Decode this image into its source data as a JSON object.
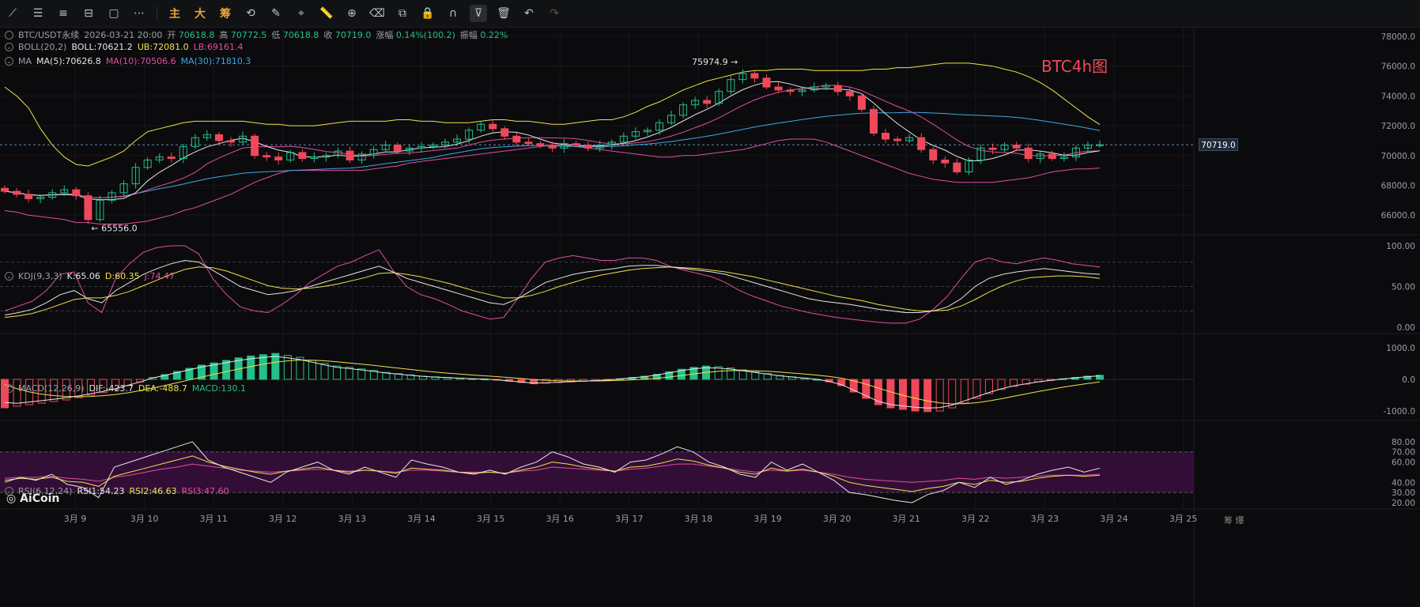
{
  "toolbar": {
    "items": [
      {
        "name": "trendline-tool-icon",
        "glyph": "⟋"
      },
      {
        "name": "horizontal-lines-icon",
        "glyph": "☰"
      },
      {
        "name": "channel-tool-icon",
        "glyph": "≡"
      },
      {
        "name": "fib-tool-icon",
        "glyph": "⊟"
      },
      {
        "name": "rectangle-tool-icon",
        "glyph": "▢"
      },
      {
        "name": "more-tools-icon",
        "glyph": "⋯"
      }
    ],
    "text_buttons": [
      "主",
      "大",
      "筹"
    ],
    "items2": [
      {
        "name": "rotate-tool-icon",
        "glyph": "⟲"
      },
      {
        "name": "brush-tool-icon",
        "glyph": "✎"
      },
      {
        "name": "select-tool-icon",
        "glyph": "⌖"
      },
      {
        "name": "ruler-tool-icon",
        "glyph": "📏"
      },
      {
        "name": "zoom-tool-icon",
        "glyph": "⊕"
      },
      {
        "name": "eraser-tool-icon",
        "glyph": "⌫"
      },
      {
        "name": "compare-tool-icon",
        "glyph": "⧉"
      },
      {
        "name": "lock-tool-icon",
        "glyph": "🔒"
      },
      {
        "name": "magnet-tool-icon",
        "glyph": "∩"
      },
      {
        "name": "filter-tool-icon",
        "glyph": "⊽"
      },
      {
        "name": "delete-tool-icon",
        "glyph": "🗑"
      },
      {
        "name": "undo-icon",
        "glyph": "↶"
      },
      {
        "name": "redo-icon",
        "glyph": "↷"
      }
    ]
  },
  "header": {
    "symbol": "BTC/USDT永续",
    "time": "2026-03-21 20:00",
    "open_label": "开",
    "open": "70618.8",
    "high_label": "高",
    "high": "70772.5",
    "low_label": "低",
    "low": "70618.8",
    "close_label": "收",
    "close": "70719.0",
    "change_label": "涨幅",
    "change": "0.14%(100.2)",
    "amp_label": "振幅",
    "amp": "0.22%"
  },
  "boll": {
    "name": "BOLL(20,2)",
    "mid": "BOLL:70621.2",
    "ub": "UB:72081.0",
    "lb": "LB:69161.4"
  },
  "ma": {
    "name": "MA",
    "ma5": "MA(5):70626.8",
    "ma10": "MA(10):70506.6",
    "ma30": "MA(30):71810.3"
  },
  "kdj": {
    "name": "KDJ(9,3,3)",
    "k": "K:65.06",
    "d": "D:60.35",
    "j": "J:74.47"
  },
  "macd": {
    "name": "MACD(12,26,9)",
    "dif": "DIF:-423.7",
    "dea": "DEA:-488.7",
    "macd": "MACD:130.1"
  },
  "rsi": {
    "name": "RSI(6,12,24)",
    "rsi1": "RSI1:54.23",
    "rsi2": "RSI2:46.63",
    "rsi3": "RSI3:47.60"
  },
  "watermark": "BTC4h图",
  "logo": "AiCoin",
  "corner": "筹 爆",
  "colors": {
    "up": "#22c08a",
    "down": "#f0485b",
    "ma5": "#e6e6e6",
    "ma10": "#e04ea0",
    "ma30": "#3da8e6",
    "boll": "#f0e14a",
    "rsi_band": "#3a0f40"
  },
  "chart_data": {
    "type": "candlestick",
    "last_price": "70719.0",
    "price_axis": {
      "ticks": [
        "78000.0",
        "76000.0",
        "74000.0",
        "72000.0",
        "70000.0",
        "68000.0",
        "66000.0"
      ],
      "range": [
        65000,
        78000
      ]
    },
    "annotations": {
      "high": "75974.9",
      "low": "65556.0"
    },
    "x_labels": [
      "3月 9",
      "3月 10",
      "3月 11",
      "3月 12",
      "3月 13",
      "3月 14",
      "3月 15",
      "3月 16",
      "3月 17",
      "3月 18",
      "3月 19",
      "3月 20",
      "3月 21",
      "3月 22",
      "3月 23",
      "3月 24",
      "3月 25"
    ],
    "close": [
      67600,
      67400,
      67100,
      67200,
      67500,
      67700,
      67300,
      65700,
      67000,
      67500,
      68100,
      69200,
      69700,
      69900,
      69800,
      70600,
      71200,
      71400,
      71000,
      70900,
      71300,
      70000,
      69900,
      69700,
      70200,
      69800,
      69900,
      70000,
      70300,
      69700,
      70100,
      70400,
      70700,
      70300,
      70500,
      70600,
      70700,
      70900,
      71100,
      71700,
      72100,
      71800,
      71300,
      70900,
      70800,
      70700,
      70500,
      70800,
      70700,
      70500,
      70700,
      70900,
      71300,
      71600,
      71700,
      72200,
      72700,
      73400,
      73700,
      73500,
      74300,
      75100,
      75500,
      75200,
      74600,
      74400,
      74300,
      74400,
      74600,
      74700,
      74300,
      74000,
      73100,
      71500,
      71100,
      71000,
      71200,
      70400,
      69700,
      69500,
      68900,
      69700,
      70500,
      70400,
      70700,
      70500,
      69800,
      70100,
      69800,
      69900,
      70500,
      70700,
      70719
    ],
    "boll_upper": [
      74600,
      74000,
      73200,
      71800,
      70700,
      69900,
      69400,
      69300,
      69600,
      69900,
      70300,
      71000,
      71600,
      71800,
      72000,
      72200,
      72300,
      72300,
      72300,
      72300,
      72300,
      72200,
      72100,
      72100,
      72000,
      72000,
      72000,
      72100,
      72200,
      72300,
      72300,
      72300,
      72300,
      72400,
      72400,
      72300,
      72300,
      72200,
      72200,
      72200,
      72300,
      72400,
      72400,
      72300,
      72300,
      72200,
      72100,
      72100,
      72200,
      72300,
      72400,
      72400,
      72600,
      72900,
      73300,
      73600,
      74000,
      74400,
      74700,
      75000,
      75200,
      75400,
      75600,
      75700,
      75700,
      75800,
      75800,
      75800,
      75700,
      75700,
      75700,
      75700,
      75700,
      75800,
      75800,
      75900,
      75900,
      76000,
      76100,
      76200,
      76200,
      76200,
      76100,
      76000,
      75800,
      75600,
      75300,
      74900,
      74400,
      73800,
      73200,
      72600,
      72081
    ],
    "boll_lower": [
      66300,
      66200,
      66000,
      65900,
      65800,
      65700,
      65500,
      65500,
      65400,
      65400,
      65400,
      65500,
      65600,
      65800,
      66000,
      66300,
      66500,
      66800,
      67100,
      67400,
      67800,
      68200,
      68500,
      68800,
      69000,
      69000,
      69000,
      69000,
      69000,
      69000,
      69000,
      69100,
      69200,
      69300,
      69500,
      69600,
      69700,
      69800,
      69900,
      70000,
      70100,
      70200,
      70300,
      70400,
      70500,
      70600,
      70700,
      70700,
      70600,
      70500,
      70400,
      70300,
      70200,
      70100,
      70000,
      69900,
      69900,
      70000,
      70000,
      70100,
      70200,
      70300,
      70400,
      70600,
      70800,
      71000,
      71100,
      71100,
      71100,
      70900,
      70600,
      70300,
      70000,
      69700,
      69400,
      69100,
      68800,
      68600,
      68400,
      68300,
      68200,
      68200,
      68200,
      68200,
      68300,
      68400,
      68500,
      68700,
      68900,
      69000,
      69100,
      69100,
      69161
    ],
    "kdj_k": [
      15,
      18,
      22,
      30,
      40,
      45,
      35,
      30,
      45,
      55,
      65,
      72,
      78,
      82,
      80,
      70,
      60,
      50,
      45,
      40,
      42,
      45,
      50,
      55,
      60,
      65,
      70,
      75,
      68,
      60,
      55,
      50,
      45,
      40,
      35,
      30,
      28,
      35,
      45,
      55,
      60,
      65,
      68,
      70,
      72,
      75,
      76,
      76,
      74,
      72,
      70,
      68,
      65,
      60,
      55,
      50,
      45,
      40,
      35,
      32,
      30,
      28,
      25,
      22,
      20,
      18,
      18,
      20,
      25,
      35,
      50,
      60,
      65,
      68,
      70,
      72,
      70,
      68,
      66,
      65
    ],
    "kdj_d": [
      12,
      14,
      17,
      22,
      28,
      34,
      36,
      36,
      39,
      44,
      51,
      58,
      65,
      71,
      74,
      73,
      69,
      63,
      57,
      51,
      48,
      47,
      48,
      50,
      53,
      57,
      61,
      66,
      67,
      65,
      62,
      58,
      54,
      49,
      44,
      40,
      36,
      36,
      39,
      44,
      50,
      55,
      60,
      64,
      67,
      70,
      72,
      73,
      74,
      73,
      72,
      70,
      68,
      65,
      62,
      58,
      54,
      50,
      46,
      42,
      38,
      35,
      32,
      28,
      25,
      22,
      20,
      20,
      21,
      26,
      34,
      43,
      51,
      57,
      61,
      62,
      63,
      63,
      62,
      60
    ],
    "kdj_j": [
      20,
      26,
      32,
      45,
      65,
      68,
      30,
      18,
      60,
      78,
      92,
      98,
      100,
      100,
      90,
      60,
      40,
      25,
      20,
      18,
      28,
      40,
      55,
      65,
      75,
      80,
      88,
      95,
      70,
      50,
      40,
      35,
      28,
      20,
      15,
      10,
      12,
      35,
      60,
      80,
      85,
      88,
      85,
      82,
      82,
      85,
      85,
      82,
      75,
      70,
      66,
      62,
      55,
      45,
      38,
      32,
      26,
      22,
      18,
      15,
      12,
      10,
      8,
      6,
      5,
      5,
      10,
      22,
      38,
      60,
      80,
      85,
      80,
      78,
      82,
      85,
      82,
      78,
      76,
      74
    ],
    "macd_hist": [
      -900,
      -850,
      -800,
      -750,
      -700,
      -650,
      -580,
      -500,
      -420,
      -320,
      -200,
      -80,
      60,
      150,
      250,
      350,
      450,
      520,
      600,
      680,
      740,
      780,
      820,
      760,
      700,
      600,
      500,
      420,
      380,
      330,
      280,
      220,
      180,
      140,
      100,
      80,
      60,
      40,
      20,
      10,
      -20,
      -60,
      -100,
      -140,
      -120,
      -100,
      -80,
      -60,
      -40,
      -20,
      20,
      60,
      100,
      160,
      240,
      320,
      380,
      420,
      400,
      360,
      300,
      240,
      180,
      120,
      80,
      40,
      0,
      -80,
      -200,
      -400,
      -600,
      -800,
      -900,
      -950,
      -1000,
      -1020,
      -1000,
      -900,
      -750,
      -600,
      -450,
      -320,
      -220,
      -150,
      -80,
      -30,
      20,
      60,
      100,
      130
    ],
    "rsi1": [
      40,
      45,
      42,
      48,
      38,
      35,
      25,
      55,
      60,
      65,
      70,
      75,
      80,
      62,
      55,
      50,
      45,
      40,
      50,
      55,
      60,
      52,
      48,
      55,
      50,
      45,
      62,
      58,
      55,
      50,
      48,
      52,
      48,
      55,
      60,
      70,
      65,
      58,
      55,
      50,
      60,
      62,
      68,
      75,
      70,
      60,
      55,
      48,
      45,
      60,
      52,
      58,
      50,
      42,
      30,
      28,
      25,
      22,
      20,
      28,
      32,
      40,
      35,
      45,
      38,
      42,
      48,
      52,
      55,
      50,
      54
    ],
    "rsi2": [
      42,
      44,
      43,
      45,
      41,
      40,
      36,
      46,
      50,
      54,
      58,
      62,
      66,
      60,
      56,
      53,
      50,
      48,
      51,
      53,
      55,
      52,
      50,
      52,
      51,
      49,
      54,
      53,
      52,
      50,
      49,
      50,
      49,
      52,
      55,
      60,
      58,
      55,
      53,
      51,
      55,
      56,
      59,
      63,
      61,
      57,
      54,
      50,
      48,
      54,
      51,
      53,
      50,
      46,
      40,
      37,
      35,
      33,
      31,
      34,
      36,
      40,
      38,
      42,
      40,
      41,
      44,
      46,
      47,
      46,
      47
    ],
    "rsi3": [
      44,
      45,
      45,
      46,
      44,
      43,
      41,
      45,
      47,
      50,
      53,
      55,
      58,
      56,
      54,
      52,
      51,
      50,
      51,
      52,
      53,
      52,
      51,
      52,
      51,
      50,
      52,
      52,
      51,
      50,
      50,
      50,
      49,
      51,
      52,
      55,
      54,
      53,
      52,
      51,
      53,
      54,
      56,
      58,
      58,
      56,
      54,
      52,
      50,
      52,
      51,
      52,
      50,
      48,
      45,
      43,
      42,
      41,
      40,
      41,
      42,
      44,
      43,
      45,
      44,
      45,
      46,
      47,
      47,
      47,
      48
    ]
  }
}
